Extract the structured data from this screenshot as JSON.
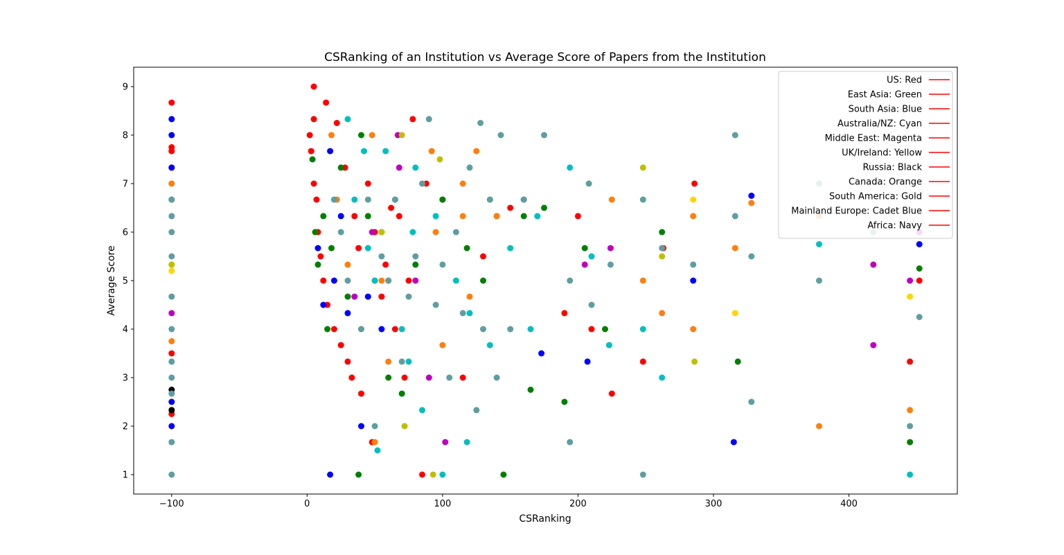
{
  "chart_data": {
    "type": "scatter",
    "title": "CSRanking of an Institution vs Average Score of Papers from the Institution",
    "xlabel": "CSRanking",
    "ylabel": "Average Score",
    "xlim": [
      -128,
      480
    ],
    "ylim": [
      0.6,
      9.4
    ],
    "xticks": [
      -100,
      0,
      100,
      200,
      300,
      400
    ],
    "xtick_labels": [
      "−100",
      "0",
      "100",
      "200",
      "300",
      "400"
    ],
    "yticks": [
      1,
      2,
      3,
      4,
      5,
      6,
      7,
      8,
      9
    ],
    "grid": false,
    "legend_position": "top-right",
    "legend": [
      {
        "label": "US: Red",
        "color": "#ff0000"
      },
      {
        "label": "East Asia: Green",
        "color": "#ff0000"
      },
      {
        "label": "South Asia: Blue",
        "color": "#ff0000"
      },
      {
        "label": "Australia/NZ: Cyan",
        "color": "#ff0000"
      },
      {
        "label": "Middle East: Magenta",
        "color": "#ff0000"
      },
      {
        "label": "UK/Ireland: Yellow",
        "color": "#ff0000"
      },
      {
        "label": "Russia: Black",
        "color": "#ff0000"
      },
      {
        "label": "Canada: Orange",
        "color": "#ff0000"
      },
      {
        "label": "South America: Gold",
        "color": "#ff0000"
      },
      {
        "label": "Mainland Europe: Cadet Blue",
        "color": "#ff0000"
      },
      {
        "label": "Africa: Navy",
        "color": "#ff0000"
      }
    ],
    "series": [
      {
        "region": "US",
        "color": "#ff0000",
        "x": [
          -100,
          -100,
          -100,
          -100,
          -100,
          -100,
          -100,
          2,
          3,
          5,
          5,
          5,
          7,
          8,
          10,
          12,
          14,
          15,
          20,
          22,
          25,
          28,
          30,
          33,
          35,
          38,
          40,
          45,
          48,
          50,
          55,
          58,
          60,
          62,
          65,
          68,
          72,
          75,
          78,
          85,
          88,
          100,
          115,
          130,
          150,
          190,
          200,
          210,
          225,
          248,
          263,
          286,
          445,
          452
        ],
        "y": [
          8.67,
          7.75,
          7.67,
          7.33,
          3.5,
          2.33,
          2.25,
          8.0,
          7.67,
          9.0,
          8.33,
          7.0,
          6.67,
          6.0,
          5.5,
          5.0,
          8.67,
          4.5,
          4.0,
          8.25,
          3.67,
          7.33,
          3.33,
          3.0,
          6.33,
          5.67,
          2.67,
          7.0,
          1.67,
          6.0,
          4.67,
          5.33,
          5.0,
          6.5,
          4.0,
          6.33,
          3.0,
          5.0,
          8.33,
          1.0,
          7.0,
          6.67,
          3.0,
          5.5,
          6.5,
          4.33,
          6.33,
          4.0,
          2.67,
          3.33,
          5.67,
          7.0,
          3.33,
          5.0
        ]
      },
      {
        "region": "East Asia",
        "color": "#008000",
        "x": [
          4,
          6,
          8,
          12,
          15,
          18,
          25,
          30,
          38,
          40,
          45,
          50,
          55,
          60,
          70,
          80,
          100,
          118,
          130,
          140,
          145,
          160,
          165,
          175,
          190,
          205,
          220,
          262,
          318,
          445,
          452
        ],
        "y": [
          7.5,
          6.0,
          5.33,
          6.33,
          4.0,
          5.67,
          7.33,
          4.67,
          1.0,
          8.0,
          6.33,
          5.0,
          6.0,
          3.0,
          2.67,
          5.33,
          6.67,
          5.67,
          5.0,
          6.33,
          1.0,
          6.33,
          2.75,
          6.5,
          2.5,
          5.67,
          4.0,
          6.0,
          3.33,
          1.67,
          5.25
        ]
      },
      {
        "region": "South Asia",
        "color": "#0000ff",
        "x": [
          -100,
          -100,
          -100,
          -100,
          -100,
          8,
          12,
          17,
          17,
          20,
          25,
          30,
          40,
          45,
          55,
          173,
          207,
          285,
          315,
          328,
          452
        ],
        "y": [
          8.33,
          8.0,
          7.33,
          2.5,
          2.0,
          5.67,
          4.5,
          7.67,
          1.0,
          5.0,
          6.33,
          4.33,
          2.0,
          4.67,
          4.0,
          3.5,
          3.33,
          5.0,
          1.67,
          6.75,
          5.75
        ]
      },
      {
        "region": "Australia/NZ",
        "color": "#00bfbf",
        "x": [
          -100,
          -100,
          30,
          35,
          42,
          45,
          50,
          52,
          58,
          65,
          70,
          75,
          78,
          80,
          85,
          95,
          100,
          110,
          118,
          120,
          135,
          150,
          165,
          170,
          194,
          210,
          223,
          248,
          262,
          378,
          445
        ],
        "y": [
          7.0,
          5.33,
          8.33,
          6.67,
          7.67,
          5.67,
          5.0,
          1.5,
          7.67,
          6.67,
          4.0,
          3.33,
          6.0,
          7.33,
          2.33,
          6.33,
          1.0,
          5.0,
          1.67,
          4.33,
          3.67,
          5.67,
          4.0,
          6.33,
          7.33,
          5.5,
          3.67,
          4.0,
          3.0,
          5.75,
          1.0
        ]
      },
      {
        "region": "Middle East",
        "color": "#bf00bf",
        "x": [
          -100,
          -100,
          35,
          48,
          67,
          68,
          80,
          90,
          102,
          160,
          205,
          224,
          418,
          418,
          445,
          452
        ],
        "y": [
          6.67,
          4.33,
          4.67,
          6.0,
          8.0,
          7.33,
          5.0,
          3.0,
          1.67,
          6.67,
          5.33,
          5.67,
          5.33,
          3.67,
          5.0,
          6.0
        ]
      },
      {
        "region": "UK/Ireland",
        "color": "#bfbf00",
        "x": [
          -100,
          55,
          70,
          72,
          93,
          98,
          248,
          262,
          286
        ],
        "y": [
          5.33,
          6.0,
          8.0,
          2.0,
          1.0,
          7.5,
          7.33,
          5.5,
          3.33
        ]
      },
      {
        "region": "Russia",
        "color": "#000000",
        "x": [
          -100,
          -100
        ],
        "y": [
          2.75,
          2.33
        ]
      },
      {
        "region": "Canada",
        "color": "#ff7f0e",
        "x": [
          -100,
          -100,
          18,
          22,
          30,
          40,
          48,
          50,
          55,
          60,
          92,
          95,
          100,
          115,
          115,
          120,
          125,
          135,
          140,
          225,
          248,
          262,
          285,
          285,
          316,
          328,
          378,
          378,
          445
        ],
        "y": [
          7.0,
          3.75,
          8.0,
          6.67,
          5.33,
          4.0,
          8.0,
          1.67,
          5.0,
          3.33,
          7.67,
          6.0,
          3.67,
          7.0,
          6.33,
          4.67,
          7.67,
          6.67,
          6.33,
          6.67,
          5.0,
          4.33,
          6.33,
          4.0,
          5.67,
          6.6,
          6.33,
          2.0,
          2.33
        ]
      },
      {
        "region": "South America",
        "color": "#ffd700",
        "x": [
          -100,
          285,
          316,
          445
        ],
        "y": [
          5.2,
          6.67,
          4.33,
          4.67
        ]
      },
      {
        "region": "Mainland Europe",
        "color": "#5f9ea0",
        "x": [
          -100,
          -100,
          -100,
          -100,
          -100,
          -100,
          -100,
          -100,
          -100,
          -100,
          -100,
          20,
          25,
          30,
          40,
          45,
          50,
          55,
          60,
          65,
          70,
          75,
          80,
          85,
          90,
          95,
          100,
          105,
          110,
          115,
          120,
          125,
          128,
          130,
          135,
          140,
          143,
          150,
          160,
          175,
          194,
          194,
          208,
          210,
          224,
          248,
          248,
          262,
          285,
          316,
          316,
          328,
          328,
          378,
          378,
          418,
          445,
          452
        ],
        "y": [
          6.67,
          6.33,
          6.0,
          5.5,
          4.67,
          4.0,
          3.33,
          3.0,
          2.67,
          1.67,
          1.0,
          6.67,
          6.0,
          5.0,
          4.0,
          6.67,
          2.0,
          5.5,
          5.0,
          6.67,
          3.33,
          4.67,
          5.5,
          7.0,
          8.33,
          4.5,
          5.33,
          3.0,
          6.0,
          4.33,
          7.33,
          2.33,
          8.25,
          4.0,
          6.67,
          3.0,
          8.0,
          4.0,
          6.67,
          8.0,
          5.0,
          1.67,
          7.0,
          4.5,
          5.33,
          6.67,
          1.0,
          5.67,
          5.33,
          8.0,
          6.33,
          5.5,
          2.5,
          7.0,
          5.0,
          6.0,
          2.0,
          4.25
        ]
      },
      {
        "region": "Africa",
        "color": "#000080",
        "x": [],
        "y": []
      }
    ]
  }
}
